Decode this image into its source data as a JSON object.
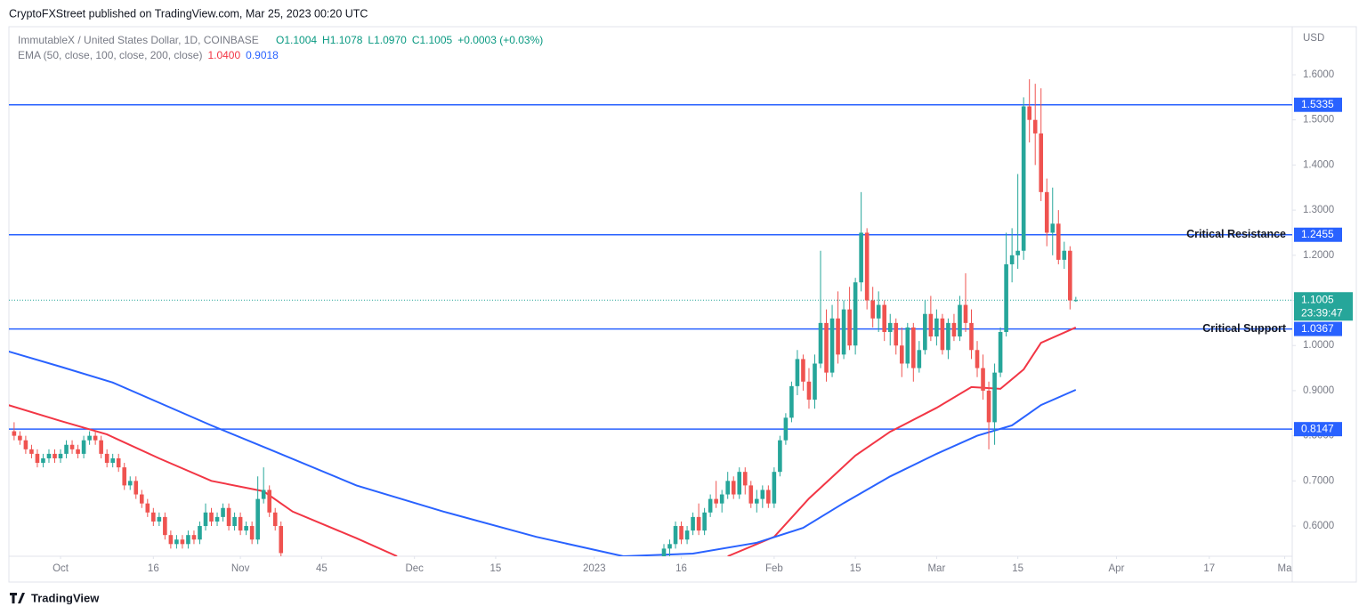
{
  "published": "CryptoFXStreet published on TradingView.com, Mar 25, 2023 00:20 UTC",
  "footer": "TradingView",
  "chart_data": {
    "type": "candlestick",
    "title": "ImmutableX / United States Dollar, 1D, COINBASE",
    "ohlc_legend": [
      "O1.1004",
      "H1.1078",
      "L1.0970",
      "C1.1005",
      "+0.0003 (+0.03%)"
    ],
    "ema_legend": {
      "title": "EMA (50, close, 100, close, 200, close)",
      "values": [
        "1.0400",
        "0.9018"
      ]
    },
    "y_unit": "USD",
    "up_color": "#26a69a",
    "down_color": "#ef5350",
    "x": [
      -8,
      -7,
      -6,
      -5,
      -4,
      -3,
      -2,
      -1,
      0,
      1,
      2,
      3,
      4,
      5,
      6,
      7,
      8,
      9,
      10,
      11,
      12,
      13,
      14,
      15,
      16,
      17,
      18,
      19,
      20,
      21,
      22,
      23,
      24,
      25,
      26,
      27,
      28,
      29,
      30,
      31,
      32,
      33,
      34,
      35,
      36,
      37,
      38,
      104,
      105,
      106,
      107,
      108,
      109,
      110,
      111,
      112,
      113,
      114,
      115,
      116,
      117,
      118,
      119,
      120,
      121,
      122,
      123,
      124,
      125,
      126,
      127,
      128,
      129,
      130,
      131,
      132,
      133,
      134,
      135,
      136,
      137,
      138,
      139,
      140,
      141,
      142,
      143,
      144,
      145,
      146,
      147,
      148,
      149,
      150,
      151,
      152,
      153,
      154,
      155,
      156,
      157,
      158,
      159,
      160,
      161,
      162,
      163,
      164,
      165,
      166,
      167,
      168,
      169,
      170,
      171,
      172,
      173,
      174,
      175
    ],
    "open": [
      0.81,
      0.8,
      0.79,
      0.77,
      0.76,
      0.74,
      0.75,
      0.76,
      0.75,
      0.76,
      0.78,
      0.77,
      0.76,
      0.79,
      0.8,
      0.79,
      0.76,
      0.74,
      0.75,
      0.73,
      0.69,
      0.7,
      0.67,
      0.65,
      0.63,
      0.61,
      0.62,
      0.58,
      0.56,
      0.57,
      0.56,
      0.58,
      0.57,
      0.6,
      0.63,
      0.61,
      0.62,
      0.64,
      0.6,
      0.62,
      0.59,
      0.6,
      0.57,
      0.66,
      0.68,
      0.63,
      0.6,
      0.53,
      0.55,
      0.56,
      0.6,
      0.57,
      0.59,
      0.62,
      0.59,
      0.63,
      0.66,
      0.65,
      0.67,
      0.7,
      0.67,
      0.72,
      0.69,
      0.65,
      0.66,
      0.68,
      0.65,
      0.72,
      0.79,
      0.84,
      0.91,
      0.97,
      0.92,
      0.88,
      0.96,
      1.05,
      0.94,
      1.06,
      0.98,
      1.08,
      1.0,
      1.14,
      1.25,
      1.1,
      1.06,
      1.09,
      1.03,
      1.05,
      1.0,
      0.96,
      1.04,
      0.95,
      0.99,
      1.07,
      1.02,
      1.06,
      0.99,
      1.05,
      1.02,
      1.09,
      1.05,
      0.99,
      0.95,
      0.9,
      0.83,
      0.94,
      1.03,
      1.18,
      1.2,
      1.21,
      1.53,
      1.5,
      1.47,
      1.34,
      1.25,
      1.27,
      1.19,
      1.21,
      1.1004
    ],
    "high": [
      0.83,
      0.81,
      0.8,
      0.78,
      0.77,
      0.76,
      0.77,
      0.77,
      0.77,
      0.79,
      0.79,
      0.78,
      0.8,
      0.81,
      0.81,
      0.8,
      0.77,
      0.76,
      0.76,
      0.74,
      0.71,
      0.71,
      0.68,
      0.66,
      0.64,
      0.63,
      0.63,
      0.59,
      0.58,
      0.58,
      0.59,
      0.59,
      0.61,
      0.65,
      0.64,
      0.63,
      0.65,
      0.65,
      0.63,
      0.63,
      0.61,
      0.61,
      0.71,
      0.73,
      0.69,
      0.64,
      0.61,
      0.56,
      0.57,
      0.61,
      0.61,
      0.6,
      0.63,
      0.65,
      0.64,
      0.67,
      0.7,
      0.68,
      0.72,
      0.71,
      0.73,
      0.73,
      0.7,
      0.68,
      0.69,
      0.69,
      0.73,
      0.8,
      0.85,
      0.92,
      0.99,
      0.98,
      0.95,
      0.98,
      1.21,
      1.08,
      1.09,
      1.12,
      1.1,
      1.13,
      1.15,
      1.34,
      1.26,
      1.13,
      1.12,
      1.1,
      1.07,
      1.06,
      1.04,
      1.05,
      1.05,
      1.01,
      1.1,
      1.11,
      1.08,
      1.07,
      1.06,
      1.07,
      1.11,
      1.16,
      1.08,
      1.01,
      0.98,
      0.92,
      0.96,
      1.04,
      1.25,
      1.26,
      1.38,
      1.55,
      1.59,
      1.58,
      1.57,
      1.37,
      1.35,
      1.3,
      1.23,
      1.22,
      1.1078
    ],
    "low": [
      0.79,
      0.78,
      0.76,
      0.75,
      0.73,
      0.73,
      0.74,
      0.74,
      0.74,
      0.75,
      0.76,
      0.75,
      0.75,
      0.78,
      0.78,
      0.75,
      0.73,
      0.73,
      0.72,
      0.68,
      0.68,
      0.66,
      0.64,
      0.62,
      0.6,
      0.6,
      0.57,
      0.55,
      0.55,
      0.55,
      0.55,
      0.56,
      0.56,
      0.59,
      0.6,
      0.6,
      0.61,
      0.59,
      0.59,
      0.58,
      0.58,
      0.56,
      0.56,
      0.65,
      0.62,
      0.59,
      0.5,
      0.52,
      0.53,
      0.55,
      0.56,
      0.56,
      0.58,
      0.58,
      0.58,
      0.62,
      0.64,
      0.63,
      0.66,
      0.66,
      0.66,
      0.67,
      0.64,
      0.63,
      0.64,
      0.64,
      0.64,
      0.71,
      0.78,
      0.83,
      0.89,
      0.9,
      0.86,
      0.86,
      0.95,
      0.92,
      0.93,
      0.96,
      0.97,
      0.99,
      0.98,
      1.12,
      1.08,
      1.04,
      1.03,
      1.01,
      1.0,
      0.98,
      0.93,
      0.95,
      0.92,
      0.94,
      0.98,
      1.01,
      1.0,
      0.98,
      0.97,
      1.01,
      1.01,
      1.03,
      0.97,
      0.93,
      0.88,
      0.77,
      0.78,
      0.93,
      1.02,
      1.14,
      1.17,
      1.19,
      1.45,
      1.4,
      1.32,
      1.22,
      1.2,
      1.18,
      1.17,
      1.08,
      1.097
    ],
    "close": [
      0.8,
      0.79,
      0.77,
      0.76,
      0.74,
      0.75,
      0.76,
      0.75,
      0.76,
      0.78,
      0.77,
      0.76,
      0.79,
      0.8,
      0.79,
      0.76,
      0.74,
      0.75,
      0.73,
      0.69,
      0.7,
      0.67,
      0.65,
      0.63,
      0.61,
      0.62,
      0.58,
      0.56,
      0.57,
      0.56,
      0.58,
      0.57,
      0.6,
      0.63,
      0.61,
      0.62,
      0.64,
      0.6,
      0.62,
      0.59,
      0.6,
      0.57,
      0.66,
      0.68,
      0.63,
      0.6,
      0.54,
      0.55,
      0.56,
      0.6,
      0.57,
      0.59,
      0.62,
      0.59,
      0.63,
      0.66,
      0.65,
      0.67,
      0.7,
      0.67,
      0.72,
      0.69,
      0.65,
      0.66,
      0.68,
      0.65,
      0.72,
      0.79,
      0.84,
      0.91,
      0.97,
      0.92,
      0.88,
      0.96,
      1.05,
      0.94,
      1.06,
      0.98,
      1.08,
      1.0,
      1.14,
      1.25,
      1.1,
      1.06,
      1.09,
      1.03,
      1.05,
      1.0,
      0.96,
      1.04,
      0.95,
      0.99,
      1.07,
      1.02,
      1.06,
      0.99,
      1.05,
      1.02,
      1.09,
      1.05,
      0.99,
      0.95,
      0.9,
      0.83,
      0.94,
      1.03,
      1.18,
      1.2,
      1.21,
      1.53,
      1.5,
      1.47,
      1.34,
      1.25,
      1.27,
      1.19,
      1.21,
      1.1,
      1.1005
    ],
    "ema_series": [
      {
        "color": "#f23645",
        "x": [
          -9,
          0,
          8,
          17,
          26,
          35,
          40,
          51,
          58,
          86,
          115,
          123,
          129,
          137,
          143,
          151,
          157,
          162,
          166,
          169,
          175
        ],
        "values": [
          0.868,
          0.833,
          0.803,
          0.75,
          0.7,
          0.677,
          0.632,
          0.573,
          0.533,
          null,
          0.533,
          0.576,
          0.661,
          0.756,
          0.809,
          0.862,
          0.908,
          0.904,
          0.947,
          1.006,
          1.04
        ]
      },
      {
        "color": "#2962ff",
        "x": [
          -9,
          0,
          9,
          26,
          36,
          51,
          66,
          82,
          97,
          109,
          120,
          128,
          135,
          143,
          151,
          158,
          164,
          169,
          175
        ],
        "values": [
          0.987,
          0.953,
          0.918,
          0.823,
          0.77,
          0.69,
          0.632,
          0.576,
          0.533,
          0.539,
          0.563,
          0.596,
          0.651,
          0.71,
          0.76,
          0.8,
          0.823,
          0.868,
          0.9018
        ]
      }
    ],
    "levels": [
      {
        "value": 1.5335,
        "color": "#2962ff"
      },
      {
        "value": 1.2455,
        "color": "#2962ff",
        "text": "Critical Resistance"
      },
      {
        "value": 1.0367,
        "color": "#2962ff",
        "text": "Critical Support"
      },
      {
        "value": 0.8147,
        "color": "#2962ff"
      }
    ],
    "last_price": {
      "value": 1.1005,
      "countdown": "23:39:47",
      "color": "#26a69a"
    },
    "xlim": [
      -8.9,
      212.3
    ],
    "ylim": [
      0.533,
      1.7065
    ],
    "xticks": [
      {
        "value": 0,
        "label": "Oct"
      },
      16,
      {
        "value": 31,
        "label": "Nov"
      },
      45,
      {
        "value": 61,
        "label": "Dec"
      },
      {
        "value": 75,
        "label": "15"
      },
      {
        "value": 92,
        "label": "2023"
      },
      {
        "value": 107,
        "label": "16"
      },
      {
        "value": 123,
        "label": "Feb"
      },
      {
        "value": 137,
        "label": "15"
      },
      {
        "value": 151,
        "label": "Mar"
      },
      {
        "value": 165,
        "label": "15"
      },
      {
        "value": 182,
        "label": "Apr"
      },
      {
        "value": 198,
        "label": "17"
      },
      {
        "value": 211,
        "label": "Ma"
      }
    ],
    "yticks": [
      {
        "value": 0.6,
        "label": "0.6000"
      },
      {
        "value": 0.7,
        "label": "0.7000"
      },
      {
        "value": 0.8,
        "label": "0.8000"
      },
      {
        "value": 0.9,
        "label": "0.9000"
      },
      {
        "value": 1.0,
        "label": "1.0000"
      },
      {
        "value": 1.1,
        "label": "1.1000"
      },
      {
        "value": 1.2,
        "label": "1.2000"
      },
      {
        "value": 1.3,
        "label": "1.3000"
      },
      {
        "value": 1.4,
        "label": "1.4000"
      },
      {
        "value": 1.5,
        "label": "1.5000"
      },
      {
        "value": 1.6,
        "label": "1.6000"
      }
    ]
  }
}
